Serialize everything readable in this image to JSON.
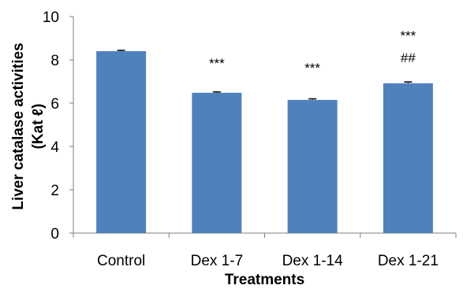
{
  "chart_data": {
    "type": "bar",
    "categories": [
      "Control",
      "Dex 1-7",
      "Dex 1-14",
      "Dex 1-21"
    ],
    "values": [
      8.4,
      6.48,
      6.15,
      6.92
    ],
    "error": [
      0.04,
      0.04,
      0.05,
      0.06
    ],
    "annotations": [
      {
        "category": "Dex 1-7",
        "lines": [
          "***"
        ]
      },
      {
        "category": "Dex 1-14",
        "lines": [
          "***"
        ]
      },
      {
        "category": "Dex 1-21",
        "lines": [
          "***",
          "##"
        ]
      }
    ],
    "xlabel": "Treatments",
    "ylabel": "Liver catalase activities (Kat ℓ)",
    "ylabel_lines": [
      "Liver catalase activities",
      "(Kat ℓ)"
    ],
    "ylim": [
      0,
      10
    ],
    "yticks": [
      0,
      2,
      4,
      6,
      8,
      10
    ],
    "grid": false,
    "bar_color": "#4f81bd"
  }
}
